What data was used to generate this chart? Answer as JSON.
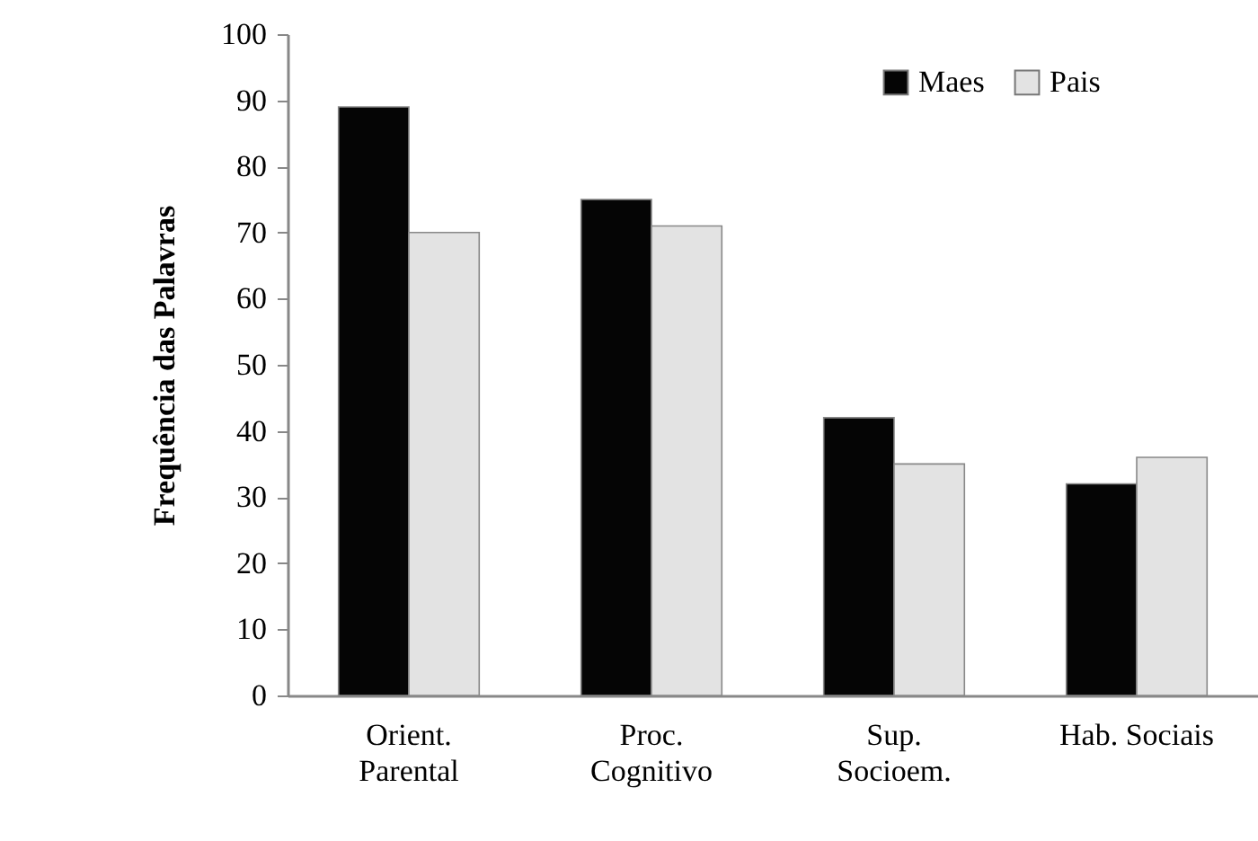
{
  "chart_data": {
    "type": "bar",
    "ylabel": "Frequência das Palavras",
    "categories": [
      "Orient.\nParental",
      "Proc.\nCognitivo",
      "Sup.\nSocioem.",
      "Hab. Sociais"
    ],
    "series": [
      {
        "name": "Maes",
        "color": "#050505",
        "values": [
          89,
          75,
          42,
          32
        ]
      },
      {
        "name": "Pais",
        "color": "#e3e3e3",
        "values": [
          70,
          71,
          35,
          36
        ]
      }
    ],
    "ylim": [
      0,
      100
    ],
    "yticks": [
      0,
      10,
      20,
      30,
      40,
      50,
      60,
      70,
      80,
      90,
      100
    ],
    "grid": false,
    "legend": "top right"
  }
}
